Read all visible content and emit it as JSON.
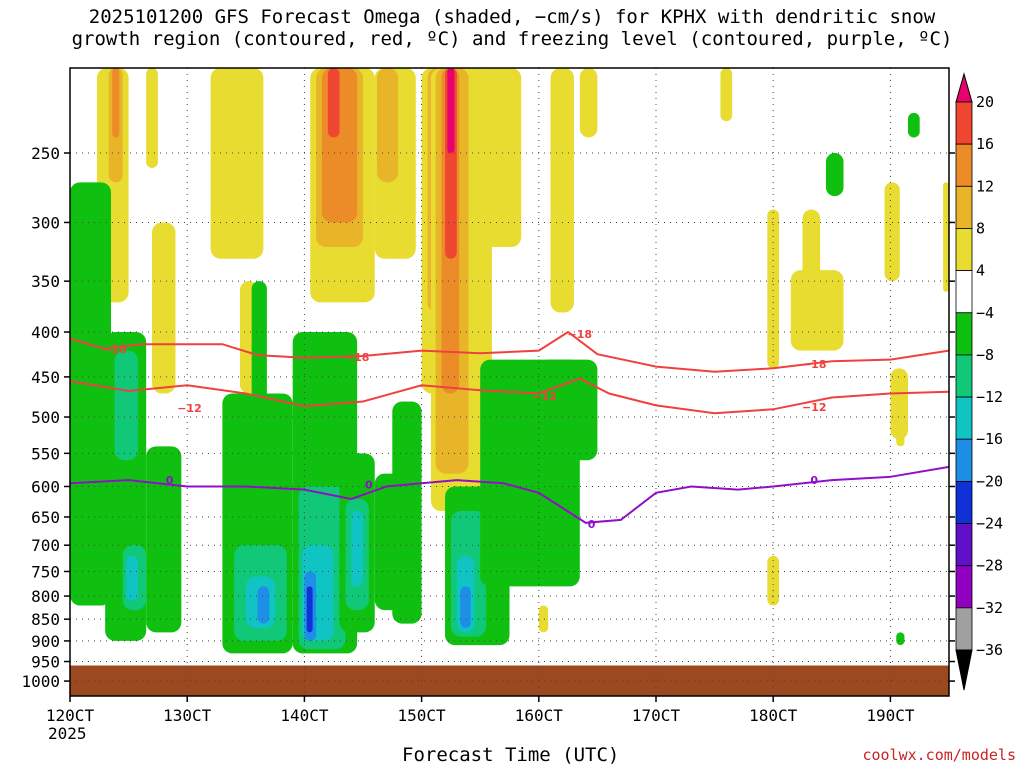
{
  "chart_data": {
    "type": "heatmap",
    "title": "2025101200 GFS Forecast Omega (shaded, −cm/s) for KPHX with dendritic snow\ngrowth region (contoured, red, ºC) and freezing level (contoured, purple, ºC)",
    "xlabel": "Forecast Time (UTC)",
    "x_ticks": [
      "120CT",
      "130CT",
      "140CT",
      "150CT",
      "160CT",
      "170CT",
      "180CT",
      "190CT"
    ],
    "x_first_year": "2025",
    "xlim_days": [
      12,
      19.5
    ],
    "y_scale": "log-pressure (inverted)",
    "y_ticks": [
      250,
      300,
      350,
      400,
      450,
      500,
      550,
      600,
      650,
      700,
      750,
      800,
      850,
      900,
      950,
      1000
    ],
    "ylim_hpa": [
      1040,
      200
    ],
    "grid": "dotted",
    "colorbar": {
      "levels": [
        -36,
        -32,
        -28,
        -24,
        -20,
        -16,
        -12,
        -8,
        -4,
        4,
        8,
        12,
        16,
        20
      ],
      "colors": [
        "#000000",
        "#a0a0a0",
        "#9000c0",
        "#6010c8",
        "#1030d8",
        "#1e8fe6",
        "#10c4c4",
        "#10c878",
        "#10c010",
        "#ffffff",
        "#e8dc30",
        "#e8b428",
        "#ec8c28",
        "#f04830",
        "#e8006e"
      ],
      "tick_labels": [
        "20",
        "16",
        "12",
        "8",
        "4",
        "−4",
        "−8",
        "−12",
        "−16",
        "−20",
        "−24",
        "−28",
        "−32",
        "−36"
      ]
    },
    "contours": [
      {
        "name": "dendritic -18",
        "color": "#f04040",
        "label": "−18",
        "points": [
          [
            12.0,
            407
          ],
          [
            12.3,
            418
          ],
          [
            12.6,
            413
          ],
          [
            13.0,
            413
          ],
          [
            13.3,
            413
          ],
          [
            13.6,
            425
          ],
          [
            14.0,
            428
          ],
          [
            14.5,
            426
          ],
          [
            15.0,
            420
          ],
          [
            15.5,
            423
          ],
          [
            16.0,
            420
          ],
          [
            16.25,
            400
          ],
          [
            16.5,
            424
          ],
          [
            17.0,
            438
          ],
          [
            17.5,
            444
          ],
          [
            18.0,
            440
          ],
          [
            18.5,
            432
          ],
          [
            19.0,
            430
          ],
          [
            19.5,
            420
          ]
        ],
        "labels_at": [
          [
            12.38,
            418
          ],
          [
            14.45,
            427
          ],
          [
            16.35,
            402
          ],
          [
            18.35,
            435
          ]
        ]
      },
      {
        "name": "dendritic -12",
        "color": "#f04040",
        "label": "−12",
        "points": [
          [
            12.0,
            455
          ],
          [
            12.5,
            467
          ],
          [
            13.0,
            460
          ],
          [
            13.5,
            470
          ],
          [
            14.0,
            486
          ],
          [
            14.5,
            480
          ],
          [
            15.0,
            460
          ],
          [
            15.5,
            466
          ],
          [
            16.0,
            470
          ],
          [
            16.35,
            452
          ],
          [
            16.6,
            470
          ],
          [
            17.0,
            485
          ],
          [
            17.5,
            495
          ],
          [
            18.0,
            490
          ],
          [
            18.5,
            475
          ],
          [
            19.0,
            470
          ],
          [
            19.5,
            468
          ]
        ],
        "labels_at": [
          [
            13.02,
            488
          ],
          [
            16.05,
            473
          ],
          [
            18.35,
            487
          ]
        ]
      },
      {
        "name": "freezing level 0",
        "color": "#9010c8",
        "label": "0",
        "points": [
          [
            12.0,
            595
          ],
          [
            12.5,
            590
          ],
          [
            13.0,
            600
          ],
          [
            13.5,
            600
          ],
          [
            14.0,
            605
          ],
          [
            14.4,
            620
          ],
          [
            14.7,
            600
          ],
          [
            15.0,
            595
          ],
          [
            15.3,
            590
          ],
          [
            15.7,
            595
          ],
          [
            16.0,
            610
          ],
          [
            16.4,
            660
          ],
          [
            16.7,
            655
          ],
          [
            17.0,
            610
          ],
          [
            17.3,
            600
          ],
          [
            17.7,
            605
          ],
          [
            18.0,
            600
          ],
          [
            18.5,
            590
          ],
          [
            19.0,
            585
          ],
          [
            19.5,
            570
          ]
        ],
        "labels_at": [
          [
            12.85,
            590
          ],
          [
            14.55,
            597
          ],
          [
            16.45,
            662
          ],
          [
            18.35,
            590
          ]
        ]
      }
    ],
    "credit": "coolwx.com/models"
  }
}
